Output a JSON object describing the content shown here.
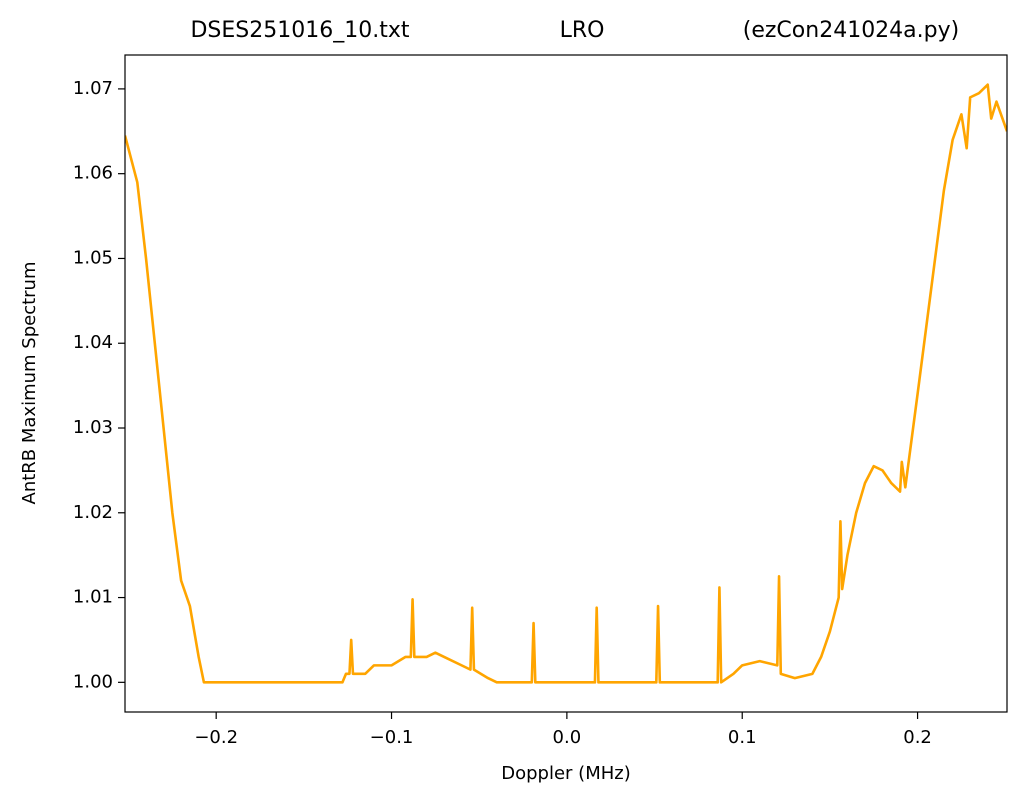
{
  "chart_data": {
    "type": "line",
    "title_left": "DSES251016_10.txt",
    "title_center": "LRO",
    "title_right": "(ezCon241024a.py)",
    "xlabel": "Doppler (MHz)",
    "ylabel": "AntRB Maximum Spectrum",
    "xlim": [
      -0.252,
      0.251
    ],
    "ylim": [
      0.9965,
      1.074
    ],
    "xticks": [
      {
        "value": -0.2,
        "label": "−0.2"
      },
      {
        "value": -0.1,
        "label": "−0.1"
      },
      {
        "value": 0.0,
        "label": "0.0"
      },
      0.1,
      0.2
    ],
    "yticks": [
      {
        "value": 1.0,
        "label": "1.00"
      },
      {
        "value": 1.01,
        "label": "1.01"
      },
      {
        "value": 1.02,
        "label": "1.02"
      },
      {
        "value": 1.03,
        "label": "1.03"
      },
      {
        "value": 1.04,
        "label": "1.04"
      },
      {
        "value": 1.05,
        "label": "1.05"
      },
      {
        "value": 1.06,
        "label": "1.06"
      },
      {
        "value": 1.07,
        "label": "1.07"
      }
    ],
    "grid": false,
    "series": [
      {
        "color": "#ffa500",
        "x": [
          -0.252,
          -0.245,
          -0.24,
          -0.235,
          -0.23,
          -0.225,
          -0.22,
          -0.215,
          -0.21,
          -0.207,
          -0.15,
          -0.128,
          -0.126,
          -0.124,
          -0.123,
          -0.122,
          -0.115,
          -0.11,
          -0.1,
          -0.092,
          -0.089,
          -0.088,
          -0.087,
          -0.08,
          -0.075,
          -0.07,
          -0.06,
          -0.055,
          -0.054,
          -0.053,
          -0.045,
          -0.04,
          -0.02,
          -0.019,
          -0.018,
          0.016,
          0.017,
          0.018,
          0.051,
          0.052,
          0.053,
          0.086,
          0.087,
          0.088,
          0.095,
          0.1,
          0.11,
          0.12,
          0.121,
          0.122,
          0.13,
          0.14,
          0.145,
          0.15,
          0.155,
          0.156,
          0.157,
          0.16,
          0.165,
          0.17,
          0.175,
          0.18,
          0.185,
          0.19,
          0.191,
          0.193,
          0.2,
          0.205,
          0.21,
          0.215,
          0.22,
          0.225,
          0.228,
          0.23,
          0.235,
          0.24,
          0.242,
          0.245,
          0.251
        ],
        "values": [
          1.0645,
          1.059,
          1.05,
          1.04,
          1.03,
          1.02,
          1.012,
          1.009,
          1.003,
          1.0,
          1.0,
          1.0,
          1.001,
          1.001,
          1.005,
          1.001,
          1.001,
          1.002,
          1.002,
          1.003,
          1.003,
          1.0098,
          1.003,
          1.003,
          1.0035,
          1.003,
          1.002,
          1.0015,
          1.0088,
          1.0015,
          1.0005,
          1.0,
          1.0,
          1.007,
          1.0,
          1.0,
          1.0088,
          1.0,
          1.0,
          1.009,
          1.0,
          1.0,
          1.0112,
          1.0,
          1.001,
          1.002,
          1.0025,
          1.002,
          1.0125,
          1.001,
          1.0005,
          1.001,
          1.003,
          1.006,
          1.01,
          1.019,
          1.011,
          1.015,
          1.02,
          1.0235,
          1.0255,
          1.025,
          1.0235,
          1.0225,
          1.026,
          1.023,
          1.034,
          1.042,
          1.05,
          1.058,
          1.064,
          1.067,
          1.063,
          1.069,
          1.0695,
          1.0705,
          1.0665,
          1.0685,
          1.065
        ]
      }
    ]
  }
}
